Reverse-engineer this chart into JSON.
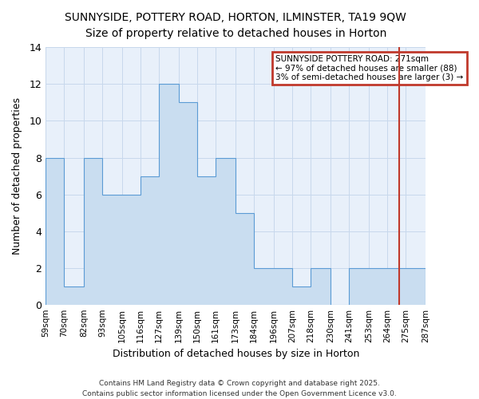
{
  "title_line1": "SUNNYSIDE, POTTERY ROAD, HORTON, ILMINSTER, TA19 9QW",
  "title_line2": "Size of property relative to detached houses in Horton",
  "xlabel": "Distribution of detached houses by size in Horton",
  "ylabel": "Number of detached properties",
  "bin_labels": [
    "59sqm",
    "70sqm",
    "82sqm",
    "93sqm",
    "105sqm",
    "116sqm",
    "127sqm",
    "139sqm",
    "150sqm",
    "161sqm",
    "173sqm",
    "184sqm",
    "196sqm",
    "207sqm",
    "218sqm",
    "230sqm",
    "241sqm",
    "253sqm",
    "264sqm",
    "275sqm",
    "287sqm"
  ],
  "bin_edges": [
    59,
    70,
    82,
    93,
    105,
    116,
    127,
    139,
    150,
    161,
    173,
    184,
    196,
    207,
    218,
    230,
    241,
    253,
    264,
    275,
    287
  ],
  "values": [
    8,
    1,
    8,
    6,
    6,
    7,
    12,
    11,
    7,
    8,
    5,
    2,
    2,
    1,
    2,
    0,
    2,
    2,
    2,
    2
  ],
  "bar_color": "#c9ddf0",
  "bar_edge_color": "#5b9bd5",
  "vline_x": 271,
  "vline_color": "#c0392b",
  "annotation_title": "SUNNYSIDE POTTERY ROAD: 271sqm",
  "annotation_line2": "← 97% of detached houses are smaller (88)",
  "annotation_line3": "3% of semi-detached houses are larger (3) →",
  "annotation_box_color": "#ffffff",
  "annotation_edge_color": "#c0392b",
  "ylim": [
    0,
    14
  ],
  "yticks": [
    0,
    2,
    4,
    6,
    8,
    10,
    12,
    14
  ],
  "grid_color": "#c8d8ec",
  "bg_color": "#e8f0fa",
  "footer": "Contains HM Land Registry data © Crown copyright and database right 2025.\nContains public sector information licensed under the Open Government Licence v3.0.",
  "fig_bg_color": "#ffffff"
}
